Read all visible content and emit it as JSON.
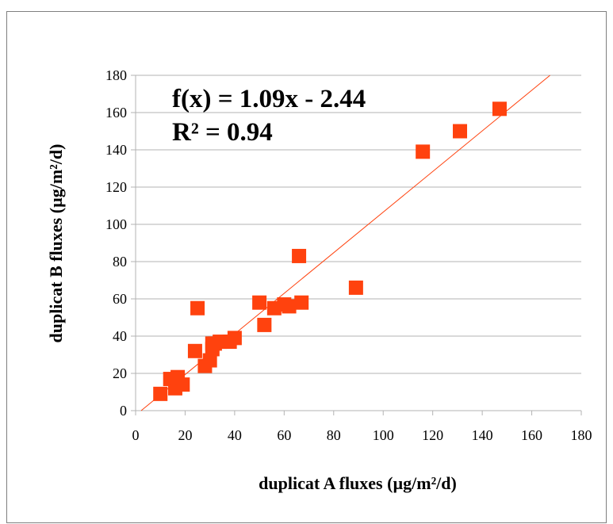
{
  "chart_data": {
    "type": "scatter",
    "xlabel": "duplicat A fluxes (µg/m²/d)",
    "ylabel": "duplicat B fluxes (µg/m²/d)",
    "xlim": [
      0,
      180
    ],
    "ylim": [
      0,
      180
    ],
    "x_ticks": [
      0,
      20,
      40,
      60,
      80,
      100,
      120,
      140,
      160,
      180
    ],
    "y_ticks": [
      0,
      20,
      40,
      60,
      80,
      100,
      120,
      140,
      160,
      180
    ],
    "grid": "horizontal",
    "marker_color": "#ff420e",
    "trendline_color": "#ff420e",
    "trendline": {
      "slope": 1.09,
      "intercept": -2.44
    },
    "annotations": [
      "f(x) = 1.09x - 2.44",
      "R² = 0.94"
    ],
    "series": [
      {
        "points": [
          [
            10,
            9
          ],
          [
            14,
            17
          ],
          [
            16,
            12
          ],
          [
            17,
            18
          ],
          [
            19,
            14
          ],
          [
            24,
            32
          ],
          [
            25,
            55
          ],
          [
            28,
            24
          ],
          [
            30,
            27
          ],
          [
            31,
            33
          ],
          [
            31,
            36
          ],
          [
            32,
            36
          ],
          [
            34,
            37
          ],
          [
            38,
            37
          ],
          [
            40,
            39
          ],
          [
            50,
            58
          ],
          [
            52,
            46
          ],
          [
            56,
            55
          ],
          [
            60,
            57
          ],
          [
            62,
            56
          ],
          [
            66,
            83
          ],
          [
            67,
            58
          ],
          [
            89,
            66
          ],
          [
            116,
            139
          ],
          [
            131,
            150
          ],
          [
            147,
            162
          ]
        ]
      }
    ]
  }
}
